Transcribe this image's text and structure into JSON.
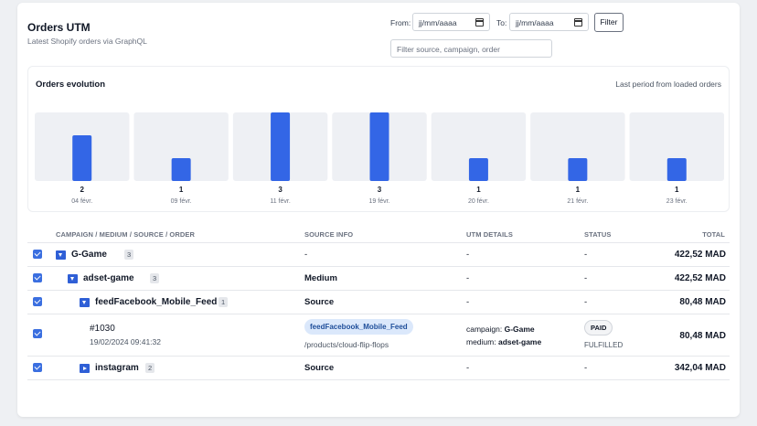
{
  "header": {
    "title": "Orders UTM",
    "subtitle": "Latest Shopify orders via GraphQL"
  },
  "filters": {
    "from_label": "From:",
    "from_placeholder": "jj/mm/aaaa",
    "to_label": "To:",
    "to_placeholder": "jj/mm/aaaa",
    "filter_button": "Filter",
    "search_placeholder": "Filter source, campaign, order"
  },
  "chart_section": {
    "title": "Orders evolution",
    "note": "Last period from loaded orders"
  },
  "chart_data": {
    "type": "bar",
    "categories": [
      "04 févr.",
      "09 févr.",
      "11 févr.",
      "19 févr.",
      "20 févr.",
      "21 févr.",
      "23 févr."
    ],
    "values": [
      2,
      1,
      3,
      3,
      1,
      1,
      1
    ],
    "ylim": [
      0,
      3
    ],
    "bar_color": "#3366e6",
    "panel_color": "#eef0f4"
  },
  "table": {
    "headers": {
      "campaign": "CAMPAIGN / MEDIUM / SOURCE / ORDER",
      "source_info": "SOURCE INFO",
      "utm_details": "UTM DETAILS",
      "status": "STATUS",
      "total": "TOTAL"
    },
    "rows": [
      {
        "name": "G-Game",
        "count": "3",
        "source": "-",
        "utm": "-",
        "status": "-",
        "total": "422,52 MAD"
      },
      {
        "name": "adset-game",
        "count": "3",
        "source": "Medium",
        "utm": "-",
        "status": "-",
        "total": "422,52 MAD"
      },
      {
        "name": "feedFacebook_Mobile_Feed",
        "count": "1",
        "source": "Source",
        "utm": "-",
        "status": "-",
        "total": "80,48 MAD"
      },
      {
        "name": "instagram",
        "count": "2",
        "source": "Source",
        "utm": "-",
        "status": "-",
        "total": "342,04 MAD"
      }
    ],
    "order": {
      "number": "#1030",
      "date": "19/02/2024 09:41:32",
      "source_badge": "feedFacebook_Mobile_Feed",
      "path": "/products/cloud-flip-flops",
      "campaign_label": "campaign:",
      "campaign_value": "G-Game",
      "medium_label": "medium:",
      "medium_value": "adset-game",
      "payment_status": "PAID",
      "fulfillment_status": "FULFILLED",
      "total": "80,48 MAD"
    }
  }
}
